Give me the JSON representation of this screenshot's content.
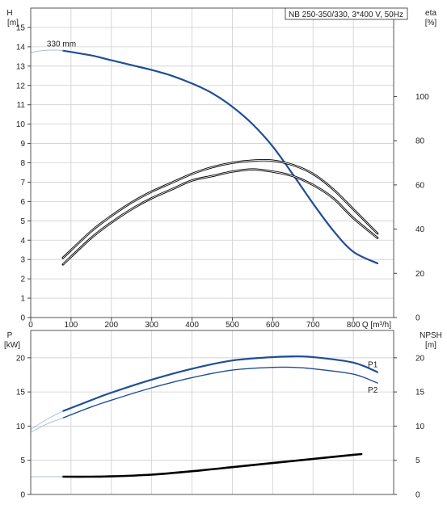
{
  "chart_data": [
    {
      "type": "line",
      "panel": "upper",
      "title": "NB 250-350/330, 3*400 V, 50Hz",
      "y_left_label": [
        "H",
        "[m]"
      ],
      "y_right_label": [
        "eta",
        "[%]"
      ],
      "x_label": "Q [m³/h]",
      "xlim": [
        0,
        900
      ],
      "ylim_left": [
        0,
        16
      ],
      "ylim_right": [
        0,
        140
      ],
      "x_ticks": [
        "0",
        "100",
        "200",
        "300",
        "400",
        "500",
        "600",
        "700",
        "800"
      ],
      "y_left_ticks": [
        "0",
        "1",
        "2",
        "3",
        "4",
        "5",
        "6",
        "7",
        "8",
        "9",
        "10",
        "11",
        "12",
        "13",
        "14",
        "15"
      ],
      "y_right_ticks": [
        "0",
        "20",
        "40",
        "60",
        "80",
        "100"
      ],
      "grid": true,
      "annotations": [
        "330 mm"
      ],
      "series": [
        {
          "name": "H",
          "axis": "left",
          "color": "#1f4e96",
          "x": [
            80,
            150,
            200,
            250,
            300,
            350,
            400,
            450,
            500,
            550,
            600,
            650,
            700,
            750,
            800,
            860
          ],
          "y": [
            13.8,
            13.55,
            13.3,
            13.05,
            12.8,
            12.5,
            12.1,
            11.6,
            10.9,
            10.0,
            8.85,
            7.4,
            5.9,
            4.5,
            3.4,
            2.8
          ]
        },
        {
          "axis": "right",
          "color": "#000000",
          "x": [
            80,
            150,
            200,
            250,
            300,
            350,
            400,
            450,
            500,
            550,
            600,
            650,
            700,
            750,
            800,
            860
          ],
          "y": [
            27,
            39,
            46,
            52,
            57,
            61,
            65,
            68,
            70,
            71,
            71,
            69,
            65,
            58,
            49,
            38
          ]
        },
        {
          "axis": "right",
          "color": "#000000",
          "x": [
            80,
            150,
            200,
            250,
            300,
            350,
            400,
            450,
            500,
            550,
            600,
            650,
            700,
            750,
            800,
            860
          ],
          "y": [
            24,
            36,
            43,
            49,
            54,
            58,
            62,
            64,
            66,
            67,
            66,
            64,
            60,
            54,
            45,
            36
          ]
        },
        {
          "axis": "left",
          "color": "#b0bfd8",
          "x": [
            0,
            20,
            40,
            60,
            80
          ],
          "y": [
            13.7,
            13.78,
            13.82,
            13.83,
            13.8
          ]
        }
      ]
    },
    {
      "type": "line",
      "panel": "lower",
      "y_left_label": [
        "P",
        "[kW]"
      ],
      "y_right_label": [
        "NPSH",
        "[m]"
      ],
      "xlim": [
        0,
        900
      ],
      "ylim_left": [
        0,
        24
      ],
      "ylim_right": [
        0,
        24
      ],
      "y_left_ticks": [
        "0",
        "5",
        "10",
        "15",
        "20"
      ],
      "y_right_ticks": [
        "0",
        "5",
        "10",
        "15",
        "20"
      ],
      "grid": true,
      "series": [
        {
          "name": "P1",
          "axis": "left",
          "color": "#1f4e96",
          "x": [
            80,
            150,
            200,
            300,
            400,
            500,
            600,
            650,
            700,
            800,
            860
          ],
          "y": [
            12.2,
            13.8,
            14.9,
            16.8,
            18.4,
            19.6,
            20.1,
            20.2,
            20.1,
            19.3,
            17.9
          ]
        },
        {
          "name": "P2",
          "axis": "left",
          "color": "#1f4e96",
          "x": [
            80,
            150,
            200,
            300,
            400,
            500,
            600,
            650,
            700,
            800,
            860
          ],
          "y": [
            11.2,
            12.8,
            13.8,
            15.6,
            17.1,
            18.2,
            18.6,
            18.6,
            18.4,
            17.6,
            16.3
          ]
        },
        {
          "name": "NPSH",
          "axis": "right",
          "color": "#000000",
          "x": [
            80,
            150,
            200,
            300,
            400,
            500,
            600,
            700,
            800,
            820
          ],
          "y": [
            2.6,
            2.6,
            2.65,
            2.9,
            3.4,
            4.0,
            4.6,
            5.2,
            5.8,
            5.9
          ]
        },
        {
          "axis": "left",
          "color": "#b0bfd8",
          "x": [
            0,
            40,
            80
          ],
          "y": [
            9.5,
            11.0,
            12.2
          ]
        },
        {
          "axis": "left",
          "color": "#b0bfd8",
          "x": [
            0,
            40,
            80
          ],
          "y": [
            9.1,
            10.3,
            11.2
          ]
        },
        {
          "axis": "right",
          "color": "#b0bfd8",
          "x": [
            0,
            40,
            80
          ],
          "y": [
            2.6,
            2.6,
            2.6
          ]
        }
      ]
    }
  ]
}
